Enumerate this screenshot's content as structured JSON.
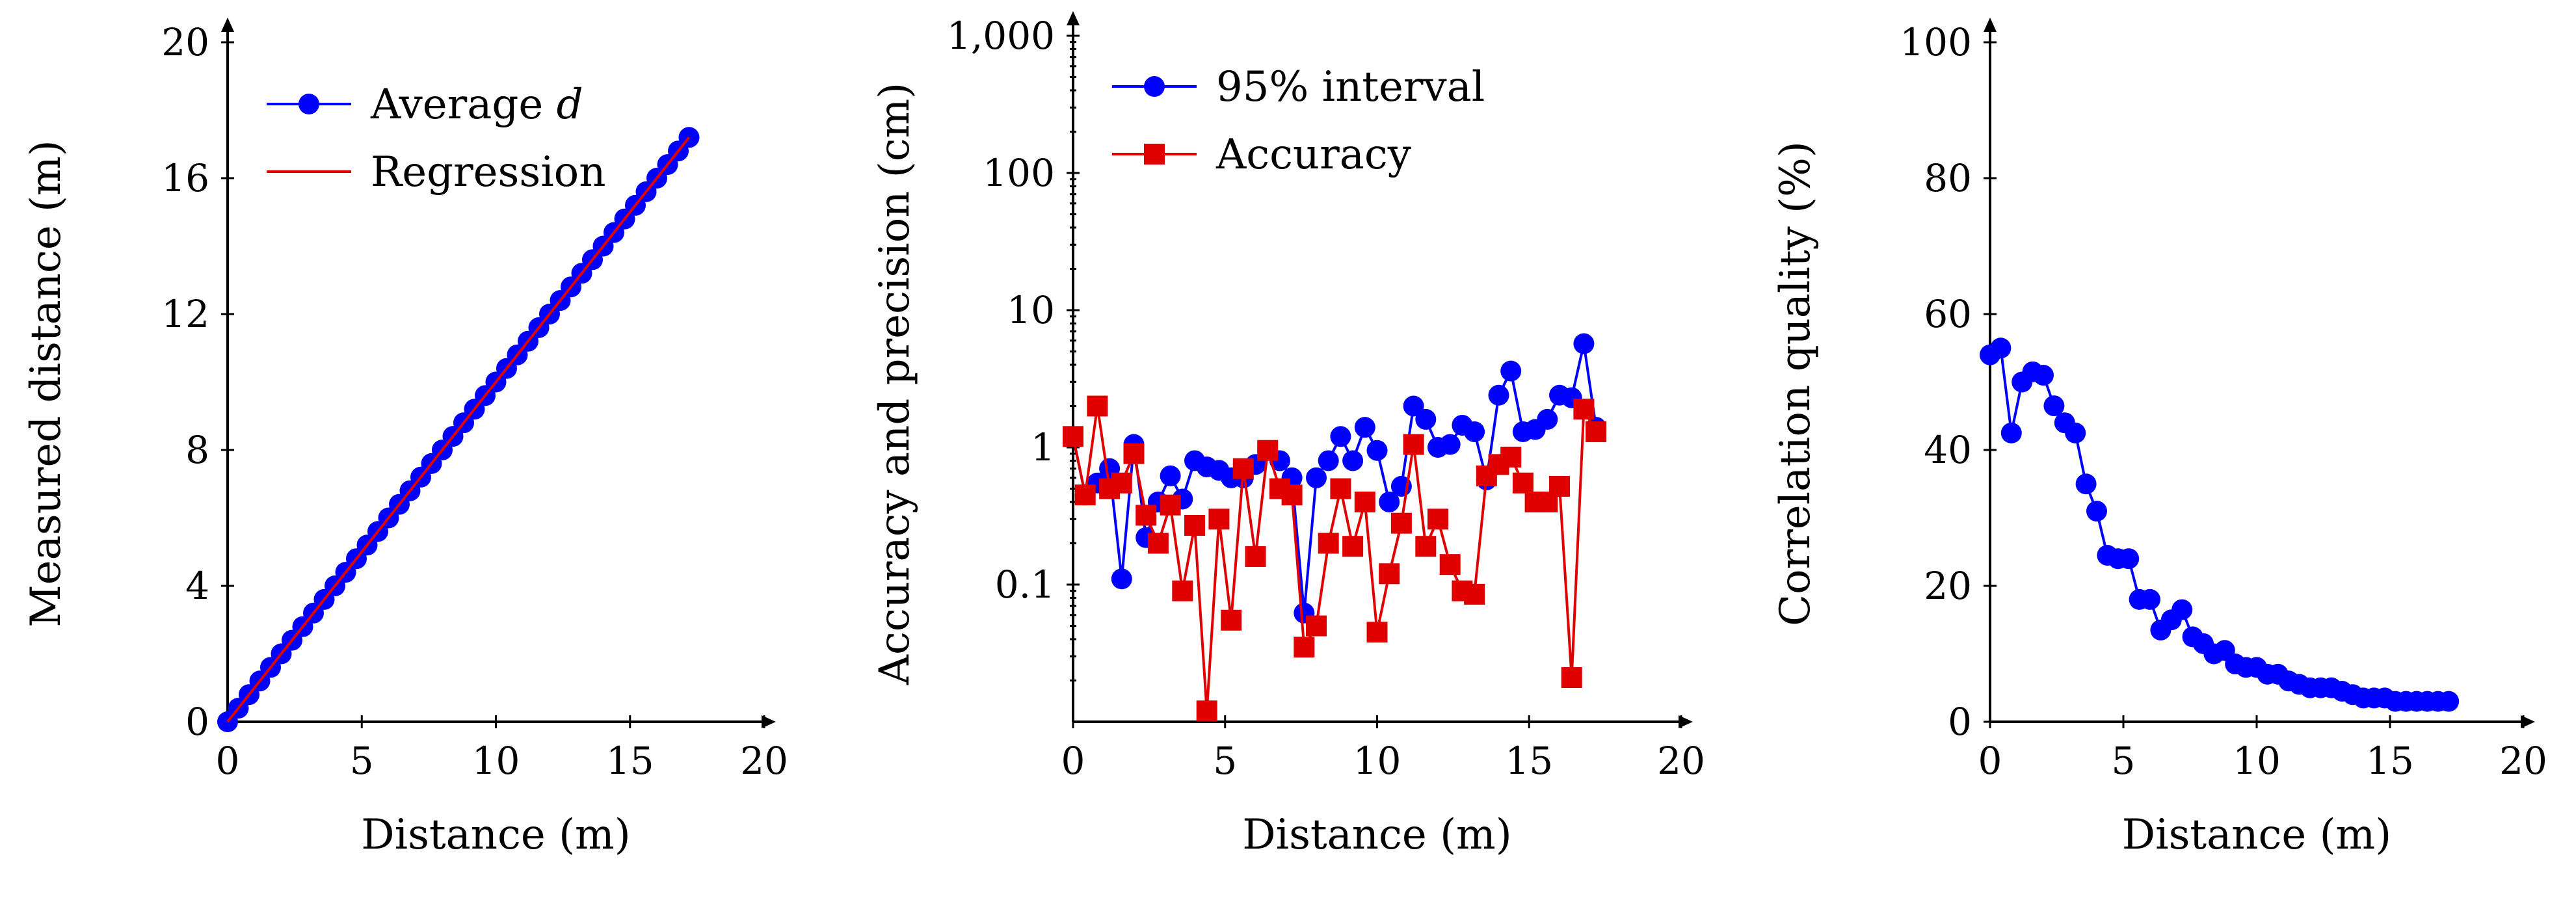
{
  "chart_data": [
    {
      "type": "line",
      "xlabel": "Distance (m)",
      "ylabel": "Measured distance (m)",
      "xlim": [
        0,
        20
      ],
      "ylim": [
        0,
        20
      ],
      "xticks": [
        0,
        5,
        10,
        15,
        20
      ],
      "yticks": [
        0,
        4,
        8,
        12,
        16,
        20
      ],
      "ytick_labels": [
        "0",
        "4",
        "8",
        "12",
        "16",
        "20"
      ],
      "legend_position": "top-left",
      "grid": false,
      "series": [
        {
          "name": "Average d",
          "legend_prefix": "Average ",
          "legend_italic": "d",
          "color": "#0000ff",
          "marker": "circle",
          "x": [
            0.0,
            0.4,
            0.8,
            1.2,
            1.6,
            2.0,
            2.4,
            2.8,
            3.2,
            3.6,
            4.0,
            4.4,
            4.8,
            5.2,
            5.6,
            6.0,
            6.4,
            6.8,
            7.2,
            7.6,
            8.0,
            8.4,
            8.8,
            9.2,
            9.6,
            10.0,
            10.4,
            10.8,
            11.2,
            11.6,
            12.0,
            12.4,
            12.8,
            13.2,
            13.6,
            14.0,
            14.4,
            14.8,
            15.2,
            15.6,
            16.0,
            16.4,
            16.8,
            17.2
          ],
          "y": [
            0.0,
            0.4,
            0.8,
            1.2,
            1.6,
            2.0,
            2.4,
            2.8,
            3.2,
            3.6,
            4.0,
            4.4,
            4.8,
            5.2,
            5.6,
            6.0,
            6.4,
            6.8,
            7.2,
            7.6,
            8.0,
            8.4,
            8.8,
            9.2,
            9.6,
            10.0,
            10.4,
            10.8,
            11.2,
            11.6,
            12.0,
            12.4,
            12.8,
            13.2,
            13.6,
            14.0,
            14.4,
            14.8,
            15.2,
            15.6,
            16.0,
            16.4,
            16.8,
            17.2
          ]
        },
        {
          "name": "Regression",
          "color": "#e00000",
          "marker": "none",
          "x": [
            0.0,
            17.2
          ],
          "y": [
            0.0,
            17.2
          ]
        }
      ]
    },
    {
      "type": "line",
      "yscale": "log",
      "xlabel": "Distance (m)",
      "ylabel": "Accuracy and precision (cm)",
      "xlim": [
        0,
        20
      ],
      "ylim": [
        0.01,
        1000
      ],
      "xticks": [
        0,
        5,
        10,
        15,
        20
      ],
      "yticks": [
        0.1,
        1,
        10,
        100,
        1000
      ],
      "ytick_labels": [
        "0.1",
        "1",
        "10",
        "100",
        "1,000"
      ],
      "legend_position": "top-left",
      "grid": false,
      "series": [
        {
          "name": "95% interval",
          "color": "#0000ff",
          "marker": "circle",
          "x": [
            0.0,
            0.4,
            0.8,
            1.2,
            1.6,
            2.0,
            2.4,
            2.8,
            3.2,
            3.6,
            4.0,
            4.4,
            4.8,
            5.2,
            5.6,
            6.0,
            6.4,
            6.8,
            7.2,
            7.6,
            8.0,
            8.4,
            8.8,
            9.2,
            9.6,
            10.0,
            10.4,
            10.8,
            11.2,
            11.6,
            12.0,
            12.4,
            12.8,
            13.2,
            13.6,
            14.0,
            14.4,
            14.8,
            15.2,
            15.6,
            16.0,
            16.4,
            16.8,
            17.2
          ],
          "y": [
            1.2,
            0.45,
            0.55,
            0.7,
            0.11,
            1.05,
            0.22,
            0.4,
            0.62,
            0.42,
            0.8,
            0.72,
            0.68,
            0.6,
            0.6,
            0.75,
            0.95,
            0.8,
            0.6,
            0.062,
            0.6,
            0.8,
            1.2,
            0.8,
            1.4,
            0.95,
            0.4,
            0.52,
            2.0,
            1.6,
            1.0,
            1.05,
            1.45,
            1.3,
            0.58,
            2.4,
            3.6,
            1.3,
            1.35,
            1.6,
            2.4,
            2.3,
            5.7,
            1.4
          ]
        },
        {
          "name": "Accuracy",
          "color": "#e00000",
          "marker": "square",
          "x": [
            0.0,
            0.4,
            0.8,
            1.2,
            1.6,
            2.0,
            2.4,
            2.8,
            3.2,
            3.6,
            4.0,
            4.4,
            4.8,
            5.2,
            5.6,
            6.0,
            6.4,
            6.8,
            7.2,
            7.6,
            8.0,
            8.4,
            8.8,
            9.2,
            9.6,
            10.0,
            10.4,
            10.8,
            11.2,
            11.6,
            12.0,
            12.4,
            12.8,
            13.2,
            13.6,
            14.0,
            14.4,
            14.8,
            15.2,
            15.6,
            16.0,
            16.4,
            16.8,
            17.2
          ],
          "y": [
            1.2,
            0.45,
            2.0,
            0.5,
            0.55,
            0.9,
            0.32,
            0.2,
            0.38,
            0.09,
            0.27,
            0.012,
            0.3,
            0.055,
            0.7,
            0.16,
            0.95,
            0.5,
            0.45,
            0.035,
            0.05,
            0.2,
            0.5,
            0.19,
            0.4,
            0.045,
            0.12,
            0.28,
            1.05,
            0.19,
            0.3,
            0.14,
            0.09,
            0.085,
            0.62,
            0.75,
            0.85,
            0.55,
            0.4,
            0.4,
            0.52,
            0.021,
            1.9,
            1.3
          ]
        }
      ]
    },
    {
      "type": "line",
      "xlabel": "Distance (m)",
      "ylabel": "Correlation quality (%)",
      "xlim": [
        0,
        20
      ],
      "ylim": [
        0,
        100
      ],
      "xticks": [
        0,
        5,
        10,
        15,
        20
      ],
      "yticks": [
        0,
        20,
        40,
        60,
        80,
        100
      ],
      "ytick_labels": [
        "0",
        "20",
        "40",
        "60",
        "80",
        "100"
      ],
      "grid": false,
      "series": [
        {
          "name": "Correlation quality",
          "color": "#0000ff",
          "marker": "circle",
          "x": [
            0.0,
            0.4,
            0.8,
            1.2,
            1.6,
            2.0,
            2.4,
            2.8,
            3.2,
            3.6,
            4.0,
            4.4,
            4.8,
            5.2,
            5.6,
            6.0,
            6.4,
            6.8,
            7.2,
            7.6,
            8.0,
            8.4,
            8.8,
            9.2,
            9.6,
            10.0,
            10.4,
            10.8,
            11.2,
            11.6,
            12.0,
            12.4,
            12.8,
            13.2,
            13.6,
            14.0,
            14.4,
            14.8,
            15.2,
            15.6,
            16.0,
            16.4,
            16.8,
            17.2
          ],
          "y": [
            54,
            55,
            42.5,
            50,
            51.5,
            51,
            46.5,
            44,
            42.5,
            35,
            31,
            24.5,
            24,
            24,
            18,
            18,
            13.5,
            15,
            16.5,
            12.5,
            11.5,
            10,
            10.5,
            8.5,
            8,
            8,
            7,
            7,
            6,
            5.5,
            5,
            5,
            5,
            4.5,
            4,
            3.5,
            3.5,
            3.5,
            3,
            3,
            3,
            3,
            3,
            3
          ]
        }
      ]
    }
  ]
}
